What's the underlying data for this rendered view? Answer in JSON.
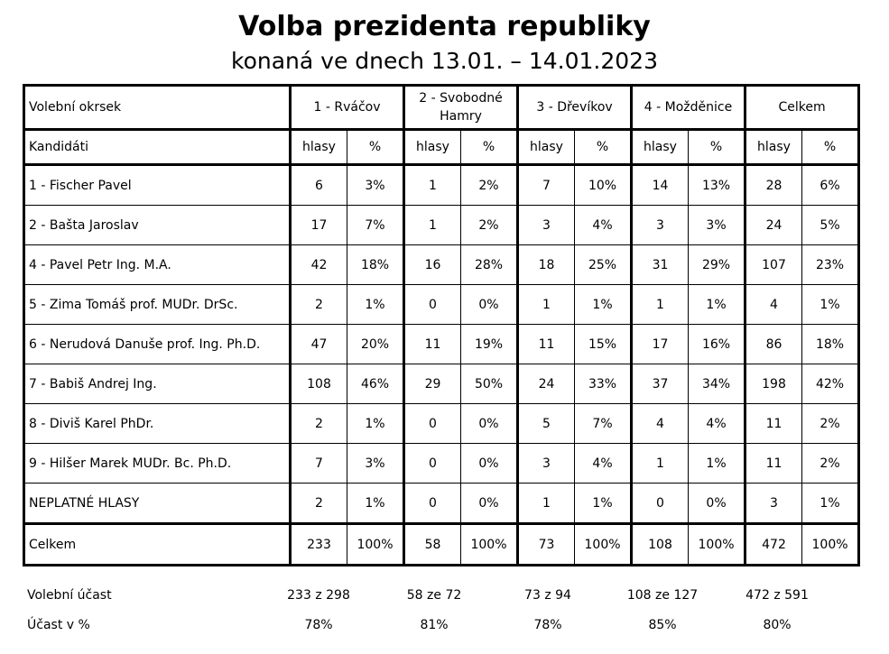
{
  "title": "Volba prezidenta republiky",
  "subtitle": "konaná ve dnech 13.01. – 14.01.2023",
  "header": {
    "okrsek_label": "Volební okrsek",
    "kandidati_label": "Kandidáti",
    "okrsky": [
      "1 - Rváčov",
      "2 - Svobodné Hamry",
      "3 - Dřevíkov",
      "4 - Možděnice",
      "Celkem"
    ],
    "sub": {
      "hlasy": "hlasy",
      "pct": "%"
    }
  },
  "rows": [
    {
      "name": "1 - Fischer Pavel",
      "cells": [
        "6",
        "3%",
        "1",
        "2%",
        "7",
        "10%",
        "14",
        "13%",
        "28",
        "6%"
      ]
    },
    {
      "name": "2 - Bašta Jaroslav",
      "cells": [
        "17",
        "7%",
        "1",
        "2%",
        "3",
        "4%",
        "3",
        "3%",
        "24",
        "5%"
      ]
    },
    {
      "name": "4 - Pavel Petr Ing. M.A.",
      "cells": [
        "42",
        "18%",
        "16",
        "28%",
        "18",
        "25%",
        "31",
        "29%",
        "107",
        "23%"
      ]
    },
    {
      "name": "5 - Zima Tomáš prof. MUDr. DrSc.",
      "cells": [
        "2",
        "1%",
        "0",
        "0%",
        "1",
        "1%",
        "1",
        "1%",
        "4",
        "1%"
      ]
    },
    {
      "name": "6 - Nerudová Danuše prof. Ing. Ph.D.",
      "cells": [
        "47",
        "20%",
        "11",
        "19%",
        "11",
        "15%",
        "17",
        "16%",
        "86",
        "18%"
      ]
    },
    {
      "name": "7 - Babiš Andrej Ing.",
      "cells": [
        "108",
        "46%",
        "29",
        "50%",
        "24",
        "33%",
        "37",
        "34%",
        "198",
        "42%"
      ]
    },
    {
      "name": "8 - Diviš Karel PhDr.",
      "cells": [
        "2",
        "1%",
        "0",
        "0%",
        "5",
        "7%",
        "4",
        "4%",
        "11",
        "2%"
      ]
    },
    {
      "name": "9 - Hilšer Marek MUDr. Bc. Ph.D.",
      "cells": [
        "7",
        "3%",
        "0",
        "0%",
        "3",
        "4%",
        "1",
        "1%",
        "11",
        "2%"
      ]
    },
    {
      "name": "NEPLATNÉ HLASY",
      "cells": [
        "2",
        "1%",
        "0",
        "0%",
        "1",
        "1%",
        "0",
        "0%",
        "3",
        "1%"
      ]
    }
  ],
  "total": {
    "name": "Celkem",
    "cells": [
      "233",
      "100%",
      "58",
      "100%",
      "73",
      "100%",
      "108",
      "100%",
      "472",
      "100%"
    ]
  },
  "ucast": {
    "label": "Volební účast",
    "values": [
      {
        "voted": "233",
        "sep": "z",
        "eligible": "298"
      },
      {
        "voted": "58",
        "sep": "ze",
        "eligible": "72"
      },
      {
        "voted": "73",
        "sep": "z",
        "eligible": "94"
      },
      {
        "voted": "108",
        "sep": "ze",
        "eligible": "127"
      },
      {
        "voted": "472",
        "sep": "z",
        "eligible": "591"
      }
    ]
  },
  "ucast_pct": {
    "label": "Účast v %",
    "values": [
      "78%",
      "81%",
      "78%",
      "85%",
      "80%"
    ]
  }
}
